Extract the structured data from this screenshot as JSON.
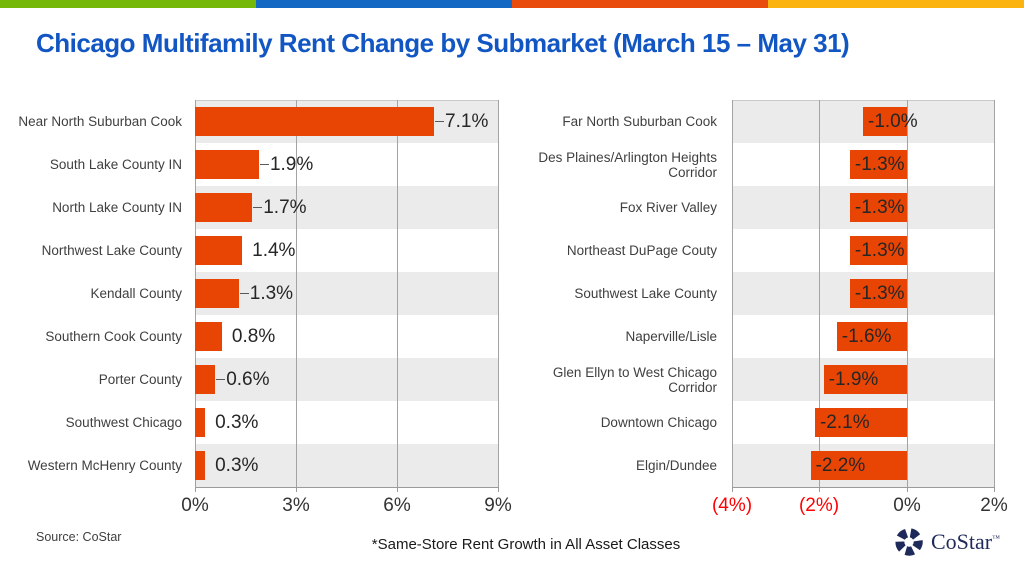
{
  "stripe_colors": [
    "#76B808",
    "#1368C4",
    "#E84B0B",
    "#FBB40F"
  ],
  "title": "Chicago Multifamily Rent Change by Submarket (March 15 – May 31)",
  "colors": {
    "title_blue": "#1156C3",
    "bar_orange": "#E84504",
    "band_gray": "#EBEBEB",
    "grid_gray": "#A3A3A3",
    "tick_red": "#FF0000",
    "tick_dark": "#333333",
    "logo_navy": "#1E2A5A"
  },
  "chart_data": [
    {
      "type": "bar",
      "orientation": "horizontal",
      "side": "positive",
      "categories": [
        "Near North Suburban Cook",
        "South Lake County IN",
        "North Lake County IN",
        "Northwest Lake County",
        "Kendall County",
        "Southern Cook County",
        "Porter County",
        "Southwest Chicago",
        "Western McHenry County"
      ],
      "values": [
        7.1,
        1.9,
        1.7,
        1.4,
        1.3,
        0.8,
        0.6,
        0.3,
        0.3
      ],
      "value_labels": [
        "7.1%",
        "1.9%",
        "1.7%",
        "1.4%",
        "1.3%",
        "0.8%",
        "0.6%",
        "0.3%",
        "0.3%"
      ],
      "leader_lines": [
        true,
        true,
        true,
        false,
        true,
        false,
        true,
        false,
        false
      ],
      "xlim": [
        0,
        9
      ],
      "ticks": [
        {
          "label": "0%",
          "value": 0,
          "red": false
        },
        {
          "label": "3%",
          "value": 3,
          "red": false
        },
        {
          "label": "6%",
          "value": 6,
          "red": false
        },
        {
          "label": "9%",
          "value": 9,
          "red": false
        }
      ],
      "grid": true,
      "legend": "none"
    },
    {
      "type": "bar",
      "orientation": "horizontal",
      "side": "negative",
      "categories": [
        "Far North Suburban Cook",
        "Des Plaines/Arlington Heights Corridor",
        "Fox River Valley",
        "Northeast DuPage Couty",
        "Southwest Lake County",
        "Naperville/Lisle",
        "Glen Ellyn to West Chicago Corridor",
        "Downtown Chicago",
        "Elgin/Dundee"
      ],
      "values": [
        -1.0,
        -1.3,
        -1.3,
        -1.3,
        -1.3,
        -1.6,
        -1.9,
        -2.1,
        -2.2
      ],
      "value_labels": [
        "-1.0%",
        "-1.3%",
        "-1.3%",
        "-1.3%",
        "-1.3%",
        "-1.6%",
        "-1.9%",
        "-2.1%",
        "-2.2%"
      ],
      "leader_lines": [
        false,
        false,
        false,
        false,
        false,
        false,
        false,
        false,
        false
      ],
      "xlim": [
        -4,
        2
      ],
      "ticks": [
        {
          "label": "(4%)",
          "value": -4,
          "red": true
        },
        {
          "label": "(2%)",
          "value": -2,
          "red": true
        },
        {
          "label": "0%",
          "value": 0,
          "red": false
        },
        {
          "label": "2%",
          "value": 2,
          "red": false
        }
      ],
      "grid": true,
      "legend": "none"
    }
  ],
  "footer": {
    "source": "Source: CoStar",
    "note": "*Same-Store Rent Growth in All Asset Classes",
    "logo_text": "CoStar",
    "logo_tm": "™"
  }
}
